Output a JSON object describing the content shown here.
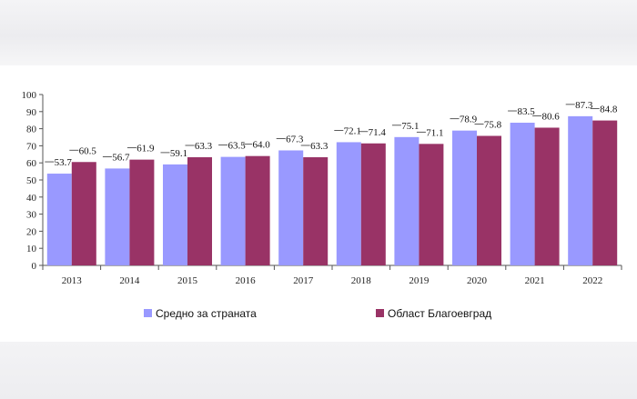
{
  "chart_data": {
    "type": "bar",
    "title": "",
    "xlabel": "",
    "ylabel": "",
    "ylim": [
      0,
      100
    ],
    "yticks": [
      0,
      10,
      20,
      30,
      40,
      50,
      60,
      70,
      80,
      90,
      100
    ],
    "categories": [
      "2013",
      "2014",
      "2015",
      "2016",
      "2017",
      "2018",
      "2019",
      "2020",
      "2021",
      "2022"
    ],
    "series": [
      {
        "name": "Средно за страната",
        "color": "#9999ff",
        "values": [
          53.7,
          56.7,
          59.1,
          63.5,
          67.3,
          72.1,
          75.1,
          78.9,
          83.5,
          87.3
        ],
        "labels": [
          "53.7",
          "56.7",
          "59.1",
          "63.5",
          "67.3",
          "72.1",
          "75.1",
          "78.9",
          "83.5",
          "87.3"
        ]
      },
      {
        "name": "Област Благоевград",
        "color": "#993366",
        "values": [
          60.5,
          61.9,
          63.3,
          64.0,
          63.3,
          71.4,
          71.1,
          75.8,
          80.6,
          84.8
        ],
        "labels": [
          "60.5",
          "61.9",
          "63.3",
          "64.0",
          "63.3",
          "71.4",
          "71.1",
          "75.8",
          "80.6",
          "84.8"
        ]
      }
    ],
    "grid": false,
    "legend_position": "bottom"
  }
}
